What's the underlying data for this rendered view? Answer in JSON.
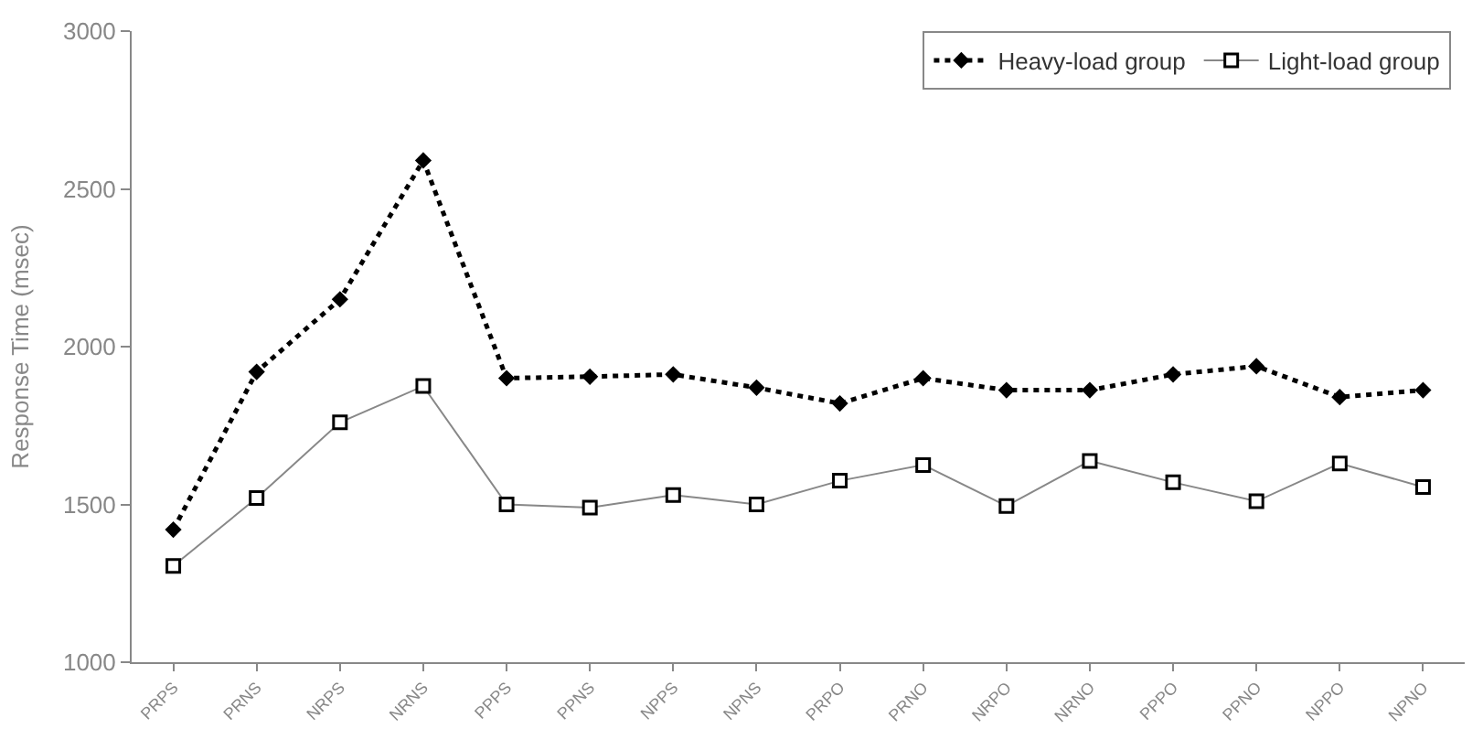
{
  "chart_data": {
    "type": "line",
    "ylabel": "Response Time (msec)",
    "categories": [
      "PRPS",
      "PRNS",
      "NRPS",
      "NRNS",
      "PPPS",
      "PPNS",
      "NPPS",
      "NPNS",
      "PRPO",
      "PRNO",
      "NRPO",
      "NRNO",
      "PPPO",
      "PPNO",
      "NPPO",
      "NPNO"
    ],
    "series": [
      {
        "name": "Heavy-load group",
        "color": "#000000",
        "marker": "diamond",
        "line_style": "dotted",
        "values": [
          1420,
          1920,
          2150,
          2590,
          1900,
          1905,
          1912,
          1870,
          1820,
          1900,
          1862,
          1862,
          1912,
          1938,
          1840,
          1862
        ]
      },
      {
        "name": "Light-load group",
        "color": "#888888",
        "marker": "square",
        "line_style": "solid",
        "values": [
          1305,
          1520,
          1760,
          1875,
          1500,
          1490,
          1530,
          1500,
          1575,
          1625,
          1495,
          1638,
          1570,
          1510,
          1630,
          1555
        ]
      }
    ],
    "ylim": [
      1000,
      3000
    ],
    "yticks": [
      1000,
      1500,
      2000,
      2500,
      3000
    ],
    "legend": "top right"
  }
}
